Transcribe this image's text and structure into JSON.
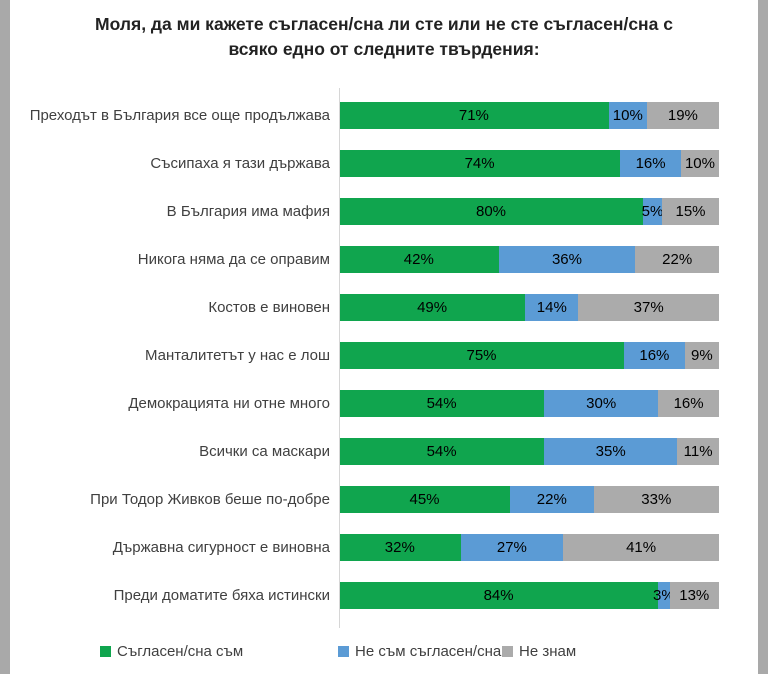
{
  "title": {
    "line1": "Моля, да ми кажете съгласен/сна ли сте или не сте съгласен/сна с",
    "line2": "всяко едно от следните твърдения:"
  },
  "colors": {
    "agree": "#10A54E",
    "disagree": "#5B9BD5",
    "dont_know": "#ABABAB",
    "frame": "#A9A9A9",
    "axis": "#D6D6D6"
  },
  "legend": {
    "items": [
      {
        "label": "Съгласен/сна съм"
      },
      {
        "label": "Не съм съгласен/сна"
      },
      {
        "label": "Не знам"
      }
    ]
  },
  "chart_data": {
    "type": "bar",
    "orientation": "horizontal",
    "stacked": true,
    "unit": "%",
    "xlim": [
      0,
      100
    ],
    "grid": false,
    "legend_position": "bottom",
    "title": "Моля, да ми кажете съгласен/сна ли сте или не сте съгласен/сна с всяко едно от следните твърдения:",
    "categories": [
      "Преходът в България все още продължава",
      "Съсипаха я тази държава",
      "В България има мафия",
      "Никога няма да се оправим",
      "Костов е виновен",
      "Манталитетът у нас е лош",
      "Демокрацията ни отне много",
      "Всички са маскари",
      "При Тодор Живков беше по-добре",
      "Държавна сигурност е виновна",
      "Преди доматите бяха истински"
    ],
    "series": [
      {
        "name": "Съгласен/сна съм",
        "color": "#10A54E",
        "values": [
          71,
          74,
          80,
          42,
          49,
          75,
          54,
          54,
          45,
          32,
          84
        ]
      },
      {
        "name": "Не съм съгласен/сна",
        "color": "#5B9BD5",
        "values": [
          10,
          16,
          5,
          36,
          14,
          16,
          30,
          35,
          22,
          27,
          3
        ]
      },
      {
        "name": "Не знам",
        "color": "#ABABAB",
        "values": [
          19,
          10,
          15,
          22,
          37,
          9,
          16,
          11,
          33,
          41,
          13
        ]
      }
    ]
  }
}
